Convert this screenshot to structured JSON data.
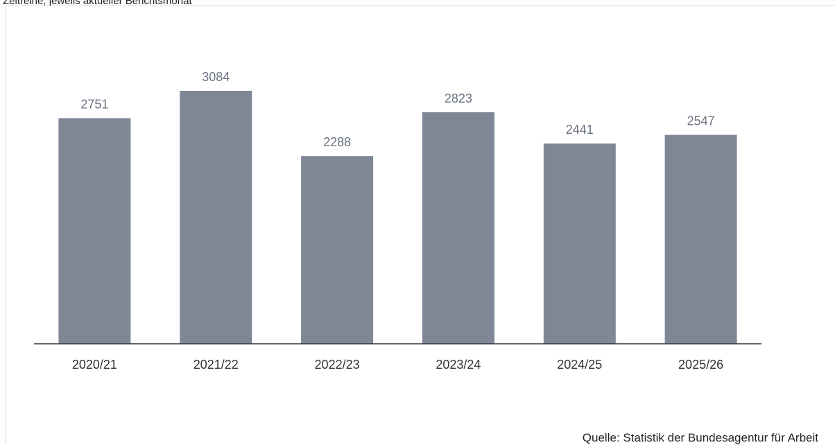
{
  "subtitle": "Zeitreihe, jeweils aktueller Berichtsmonat",
  "source": "Quelle: Statistik der Bundesagentur für Arbeit",
  "colors": {
    "bar": "#7f8797",
    "value_label": "#6b7280",
    "axis": "#333333",
    "tick_label": "#333333"
  },
  "chart_data": {
    "type": "bar",
    "categories": [
      "2020/21",
      "2021/22",
      "2022/23",
      "2023/24",
      "2024/25",
      "2025/26"
    ],
    "values": [
      2751,
      3084,
      2288,
      2823,
      2441,
      2547
    ],
    "title": "",
    "xlabel": "",
    "ylabel": "",
    "ylim": [
      0,
      3084
    ],
    "grid": false,
    "legend": "none",
    "data_labels": true
  }
}
